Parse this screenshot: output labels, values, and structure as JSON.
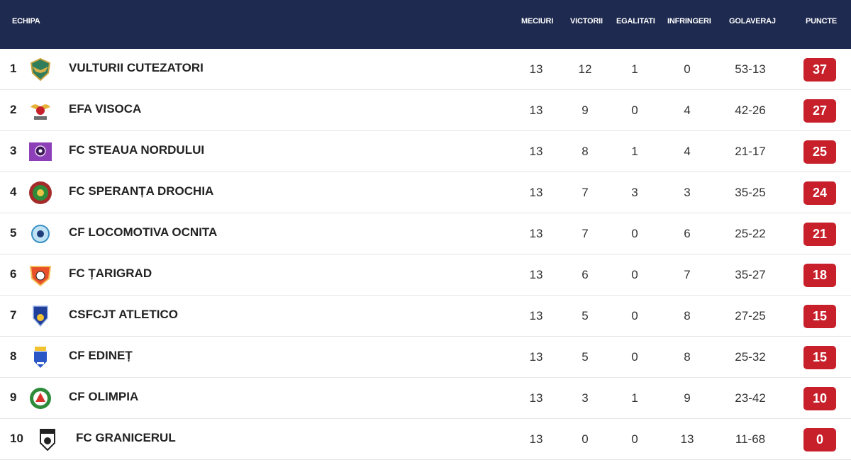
{
  "headers": {
    "team": "ECHIPA",
    "played": "MECIURI",
    "wins": "VICTORII",
    "draws": "EGALITATI",
    "losses": "INFRINGERI",
    "goals": "GOLAVERAJ",
    "points": "PUNCTE"
  },
  "colors": {
    "header_bg": "#1e2a4f",
    "points_badge": "#c8202b"
  },
  "rows": [
    {
      "pos": "1",
      "team": "VULTURII CUTEZATORI",
      "logo": "eagle-crest-icon",
      "played": "13",
      "wins": "12",
      "draws": "1",
      "losses": "0",
      "goals": "53-13",
      "points": "37"
    },
    {
      "pos": "2",
      "team": "EFA VISOCA",
      "logo": "visoca-crest-icon",
      "played": "13",
      "wins": "9",
      "draws": "0",
      "losses": "4",
      "goals": "42-26",
      "points": "27"
    },
    {
      "pos": "3",
      "team": "FC STEAUA NORDULUI",
      "logo": "steaua-crest-icon",
      "played": "13",
      "wins": "8",
      "draws": "1",
      "losses": "4",
      "goals": "21-17",
      "points": "25"
    },
    {
      "pos": "4",
      "team": "FC SPERANȚA DROCHIA",
      "logo": "speranta-crest-icon",
      "played": "13",
      "wins": "7",
      "draws": "3",
      "losses": "3",
      "goals": "35-25",
      "points": "24"
    },
    {
      "pos": "5",
      "team": "CF LOCOMOTIVA OCNITA",
      "logo": "locomotiva-crest-icon",
      "played": "13",
      "wins": "7",
      "draws": "0",
      "losses": "6",
      "goals": "25-22",
      "points": "21"
    },
    {
      "pos": "6",
      "team": "FC ȚARIGRAD",
      "logo": "tarigrad-crest-icon",
      "played": "13",
      "wins": "6",
      "draws": "0",
      "losses": "7",
      "goals": "35-27",
      "points": "18"
    },
    {
      "pos": "7",
      "team": "CSFCJT ATLETICO",
      "logo": "atletico-crest-icon",
      "played": "13",
      "wins": "5",
      "draws": "0",
      "losses": "8",
      "goals": "27-25",
      "points": "15"
    },
    {
      "pos": "8",
      "team": "CF EDINEȚ",
      "logo": "edinet-crest-icon",
      "played": "13",
      "wins": "5",
      "draws": "0",
      "losses": "8",
      "goals": "25-32",
      "points": "15"
    },
    {
      "pos": "9",
      "team": "CF OLIMPIA",
      "logo": "olimpia-crest-icon",
      "played": "13",
      "wins": "3",
      "draws": "1",
      "losses": "9",
      "goals": "23-42",
      "points": "10"
    },
    {
      "pos": "10",
      "team": "FC GRANICERUL",
      "logo": "granicerul-crest-icon",
      "played": "13",
      "wins": "0",
      "draws": "0",
      "losses": "13",
      "goals": "11-68",
      "points": "0"
    }
  ]
}
